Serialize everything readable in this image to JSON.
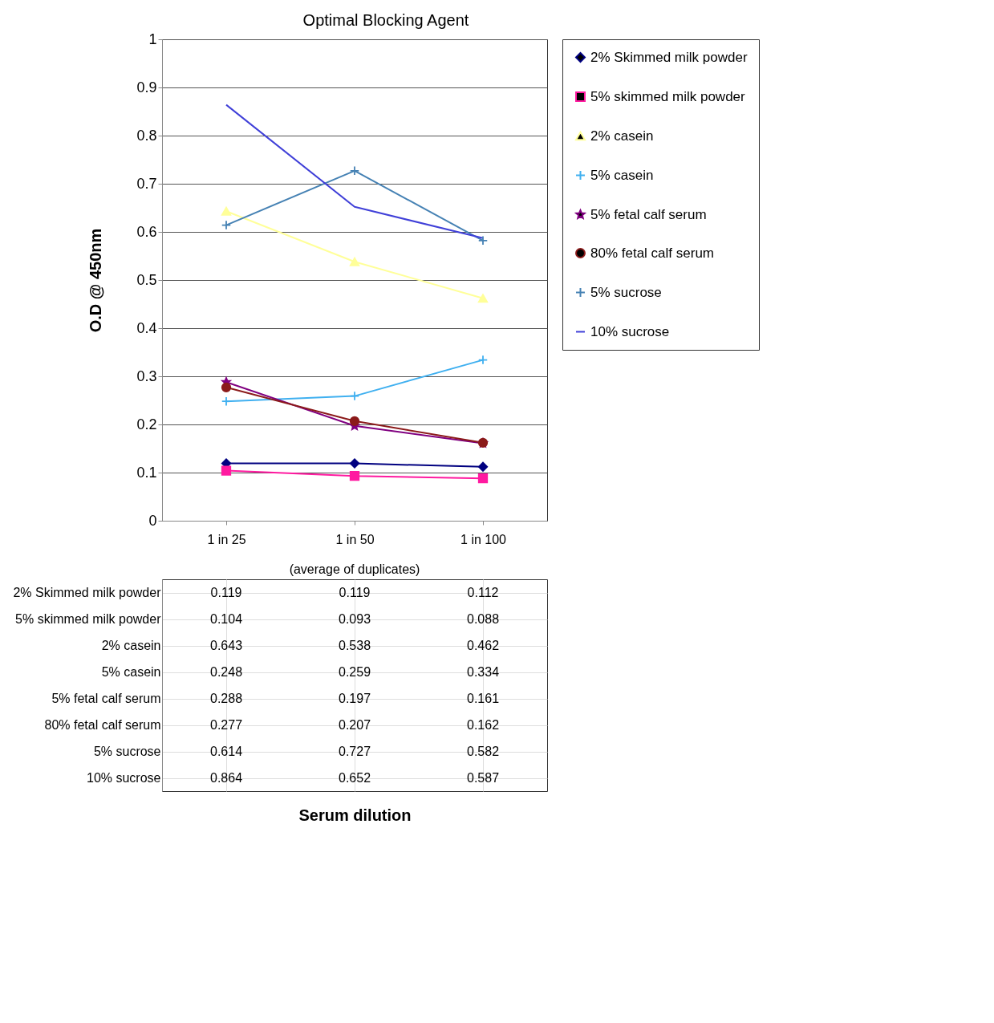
{
  "chart_data": {
    "type": "line",
    "title": "Optimal Blocking Agent",
    "ylabel": "O.D @ 450nm",
    "categories": [
      "1 in 25",
      "1 in 50",
      "1 in 100"
    ],
    "series": [
      {
        "name": "2% Skimmed milk powder",
        "color": "#000080",
        "marker": "diamond",
        "values": [
          0.119,
          0.119,
          0.112
        ]
      },
      {
        "name": "5% skimmed milk powder",
        "color": "#ff1aa0",
        "marker": "square",
        "values": [
          0.104,
          0.093,
          0.088
        ]
      },
      {
        "name": "2% casein",
        "color": "#ffff99",
        "marker": "triangle",
        "values": [
          0.643,
          0.538,
          0.462
        ]
      },
      {
        "name": "5% casein",
        "color": "#40b0f0",
        "marker": "cross",
        "values": [
          0.248,
          0.259,
          0.334
        ]
      },
      {
        "name": "5% fetal calf serum",
        "color": "#800080",
        "marker": "star",
        "values": [
          0.288,
          0.197,
          0.161
        ]
      },
      {
        "name": "80% fetal calf serum",
        "color": "#8b1a1a",
        "marker": "circle",
        "values": [
          0.277,
          0.207,
          0.162
        ]
      },
      {
        "name": "5% sucrose",
        "color": "#4682b4",
        "marker": "cross",
        "values": [
          0.614,
          0.727,
          0.582
        ]
      },
      {
        "name": "10% sucrose",
        "color": "#4040d8",
        "marker": "none",
        "values": [
          0.864,
          0.652,
          0.587
        ]
      }
    ],
    "ylim": [
      0,
      1
    ],
    "yticks": [
      0,
      0.1,
      0.2,
      0.3,
      0.4,
      0.5,
      0.6,
      0.7,
      0.8,
      0.9,
      1
    ],
    "grid": "y",
    "legend": "right",
    "data_labels": true,
    "annotations": [
      "(average of duplicates)",
      "Serum dilution"
    ]
  }
}
